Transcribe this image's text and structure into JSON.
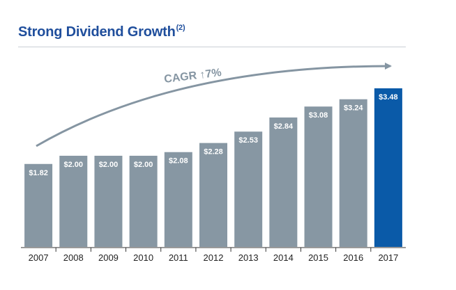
{
  "title": "Strong Dividend Growth",
  "title_sup": "(2)",
  "chart_data": {
    "type": "bar",
    "categories": [
      "2007",
      "2008",
      "2009",
      "2010",
      "2011",
      "2012",
      "2013",
      "2014",
      "2015",
      "2016",
      "2017"
    ],
    "values": [
      1.82,
      2.0,
      2.0,
      2.0,
      2.08,
      2.28,
      2.53,
      2.84,
      3.08,
      3.24,
      3.48
    ],
    "data_labels": [
      "$1.82",
      "$2.00",
      "$2.00",
      "$2.00",
      "$2.08",
      "$2.28",
      "$2.53",
      "$2.84",
      "$3.08",
      "$3.24",
      "$3.48"
    ],
    "annotation": "CAGR ↑7%",
    "colors": {
      "bar": "#8797a3",
      "highlight": "#0a5aa8",
      "arrow": "#8595a2",
      "title": "#1f4e9c"
    },
    "highlight_index": 10,
    "ylim": [
      0,
      3.48
    ],
    "grid": false,
    "legend": "none"
  }
}
